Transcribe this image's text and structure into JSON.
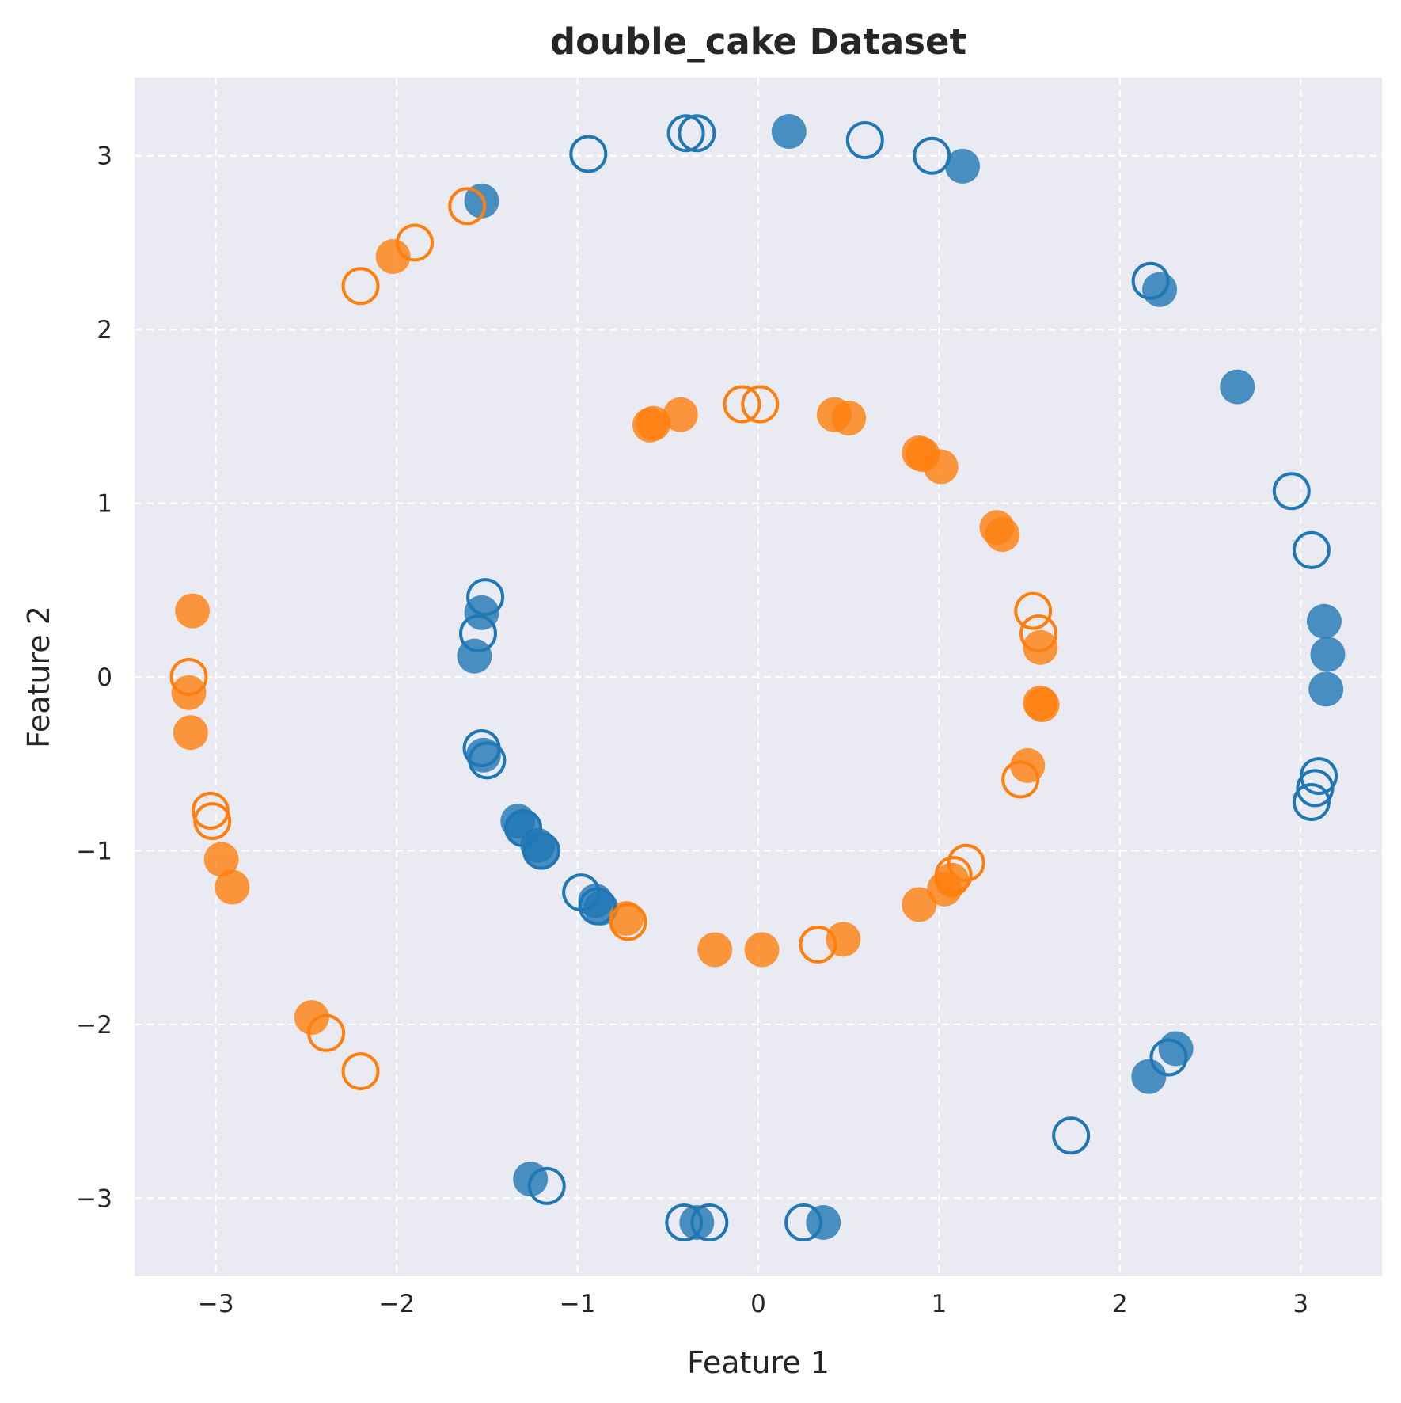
{
  "chart_data": {
    "type": "scatter",
    "title": "double_cake Dataset",
    "xlabel": "Feature 1",
    "ylabel": "Feature 2",
    "xlim": [
      -3.45,
      3.45
    ],
    "ylim": [
      -3.45,
      3.45
    ],
    "x_ticks": [
      -3,
      -2,
      -1,
      0,
      1,
      2,
      3
    ],
    "y_ticks": [
      -3,
      -2,
      -1,
      0,
      1,
      2,
      3
    ],
    "x_tick_labels": [
      "−3",
      "−2",
      "−1",
      "0",
      "1",
      "2",
      "3"
    ],
    "y_tick_labels": [
      "−3",
      "−2",
      "−1",
      "0",
      "1",
      "2",
      "3"
    ],
    "grid": true,
    "grid_style": "dashed",
    "colors": {
      "blue": "#1f77b4",
      "orange": "#ff7f0e",
      "background": "#eaeaf2"
    },
    "series": [
      {
        "color": "#1f77b4",
        "marker": "filled",
        "points": [
          [
            -1.53,
            2.74
          ],
          [
            0.17,
            3.14
          ],
          [
            1.13,
            2.94
          ],
          [
            2.22,
            2.23
          ],
          [
            2.65,
            1.67
          ],
          [
            3.13,
            0.32
          ],
          [
            3.15,
            0.13
          ],
          [
            3.14,
            -0.07
          ],
          [
            -1.53,
            0.37
          ],
          [
            -1.57,
            0.12
          ],
          [
            -1.52,
            -0.45
          ],
          [
            -1.33,
            -0.83
          ],
          [
            -1.3,
            -0.86
          ],
          [
            -1.22,
            -0.97
          ],
          [
            -1.2,
            -1.01
          ],
          [
            -0.9,
            -1.29
          ],
          [
            -0.87,
            -1.33
          ],
          [
            2.31,
            -2.14
          ],
          [
            2.16,
            -2.3
          ],
          [
            -1.26,
            -2.89
          ],
          [
            -0.34,
            -3.14
          ],
          [
            0.36,
            -3.14
          ]
        ]
      },
      {
        "color": "#1f77b4",
        "marker": "hollow",
        "points": [
          [
            -0.94,
            3.01
          ],
          [
            -0.4,
            3.13
          ],
          [
            -0.34,
            3.13
          ],
          [
            0.59,
            3.09
          ],
          [
            0.96,
            3.0
          ],
          [
            2.17,
            2.28
          ],
          [
            2.95,
            1.07
          ],
          [
            3.06,
            0.73
          ],
          [
            3.1,
            -0.57
          ],
          [
            3.08,
            -0.64
          ],
          [
            3.06,
            -0.72
          ],
          [
            -1.51,
            0.46
          ],
          [
            -1.55,
            0.25
          ],
          [
            -1.53,
            -0.41
          ],
          [
            -1.5,
            -0.48
          ],
          [
            -1.3,
            -0.87
          ],
          [
            -1.2,
            -1.0
          ],
          [
            -0.98,
            -1.24
          ],
          [
            -0.89,
            -1.32
          ],
          [
            2.27,
            -2.19
          ],
          [
            1.73,
            -2.64
          ],
          [
            -1.17,
            -2.93
          ],
          [
            -0.41,
            -3.14
          ],
          [
            -0.27,
            -3.14
          ],
          [
            0.25,
            -3.14
          ]
        ]
      },
      {
        "color": "#ff7f0e",
        "marker": "filled",
        "points": [
          [
            -2.02,
            2.42
          ],
          [
            -0.6,
            1.45
          ],
          [
            -0.58,
            1.46
          ],
          [
            -0.43,
            1.51
          ],
          [
            0.42,
            1.51
          ],
          [
            0.5,
            1.49
          ],
          [
            0.89,
            1.29
          ],
          [
            0.91,
            1.28
          ],
          [
            1.01,
            1.21
          ],
          [
            1.32,
            0.86
          ],
          [
            1.35,
            0.82
          ],
          [
            1.56,
            0.17
          ],
          [
            1.56,
            -0.15
          ],
          [
            1.57,
            -0.16
          ],
          [
            1.49,
            -0.51
          ],
          [
            1.07,
            -1.17
          ],
          [
            1.03,
            -1.22
          ],
          [
            0.89,
            -1.31
          ],
          [
            0.47,
            -1.51
          ],
          [
            0.02,
            -1.57
          ],
          [
            -0.24,
            -1.57
          ],
          [
            -0.73,
            -1.39
          ],
          [
            -3.13,
            0.38
          ],
          [
            -3.15,
            -0.09
          ],
          [
            -3.14,
            -0.32
          ],
          [
            -2.97,
            -1.05
          ],
          [
            -2.91,
            -1.21
          ],
          [
            -2.47,
            -1.96
          ]
        ]
      },
      {
        "color": "#ff7f0e",
        "marker": "hollow",
        "points": [
          [
            -1.61,
            2.71
          ],
          [
            -1.9,
            2.5
          ],
          [
            -2.2,
            2.25
          ],
          [
            -0.09,
            1.57
          ],
          [
            0.01,
            1.57
          ],
          [
            1.52,
            0.38
          ],
          [
            1.55,
            0.25
          ],
          [
            1.45,
            -0.59
          ],
          [
            1.15,
            -1.07
          ],
          [
            1.08,
            -1.14
          ],
          [
            0.33,
            -1.54
          ],
          [
            -0.72,
            -1.41
          ],
          [
            -3.15,
            0.0
          ],
          [
            -3.03,
            -0.77
          ],
          [
            -3.02,
            -0.83
          ],
          [
            -2.39,
            -2.05
          ],
          [
            -2.2,
            -2.27
          ]
        ]
      }
    ]
  }
}
